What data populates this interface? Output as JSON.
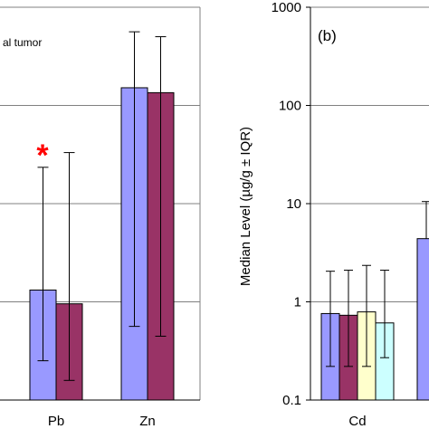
{
  "chart_data": [
    {
      "panel": "left",
      "type": "bar",
      "yscale": "linear",
      "legend_fragment": "al tumor",
      "categories": [
        "Pb",
        "Zn"
      ],
      "series": [
        {
          "color": "#9999ff",
          "values": [
            1.12,
            3.18
          ],
          "err_low": [
            0.4,
            0.75
          ],
          "err_high": [
            2.37,
            3.75
          ]
        },
        {
          "color": "#993366",
          "values": [
            0.98,
            3.13
          ],
          "err_low": [
            0.2,
            0.65
          ],
          "err_high": [
            2.52,
            3.7
          ]
        }
      ],
      "significance": {
        "symbol": "*",
        "category": "Pb",
        "color": "#ff0000"
      },
      "ylim": [
        0,
        4
      ],
      "grid": true
    },
    {
      "panel": "right",
      "type": "bar",
      "yscale": "log",
      "label": "(b)",
      "ylabel": "Median Level (µg/g ± IQR)",
      "yticks": [
        "0.1",
        "1",
        "10",
        "100",
        "1000"
      ],
      "ytick_values": [
        0.1,
        1,
        10,
        100,
        1000
      ],
      "ylim": [
        0.1,
        1000
      ],
      "categories": [
        "Cd"
      ],
      "series": [
        {
          "color": "#9999ff",
          "values": [
            0.76
          ],
          "err_low": [
            0.22
          ],
          "err_high": [
            2.05
          ]
        },
        {
          "color": "#993366",
          "values": [
            0.73
          ],
          "err_low": [
            0.22
          ],
          "err_high": [
            2.1
          ]
        },
        {
          "color": "#ffffcc",
          "values": [
            0.79
          ],
          "err_low": [
            0.22
          ],
          "err_high": [
            2.35
          ]
        },
        {
          "color": "#ccffff",
          "values": [
            0.61
          ],
          "err_low": [
            0.27
          ],
          "err_high": [
            2.1
          ]
        }
      ],
      "partial_bar": {
        "color": "#9999ff",
        "value": 4.4,
        "err_high": 10.5
      },
      "grid": true
    }
  ]
}
